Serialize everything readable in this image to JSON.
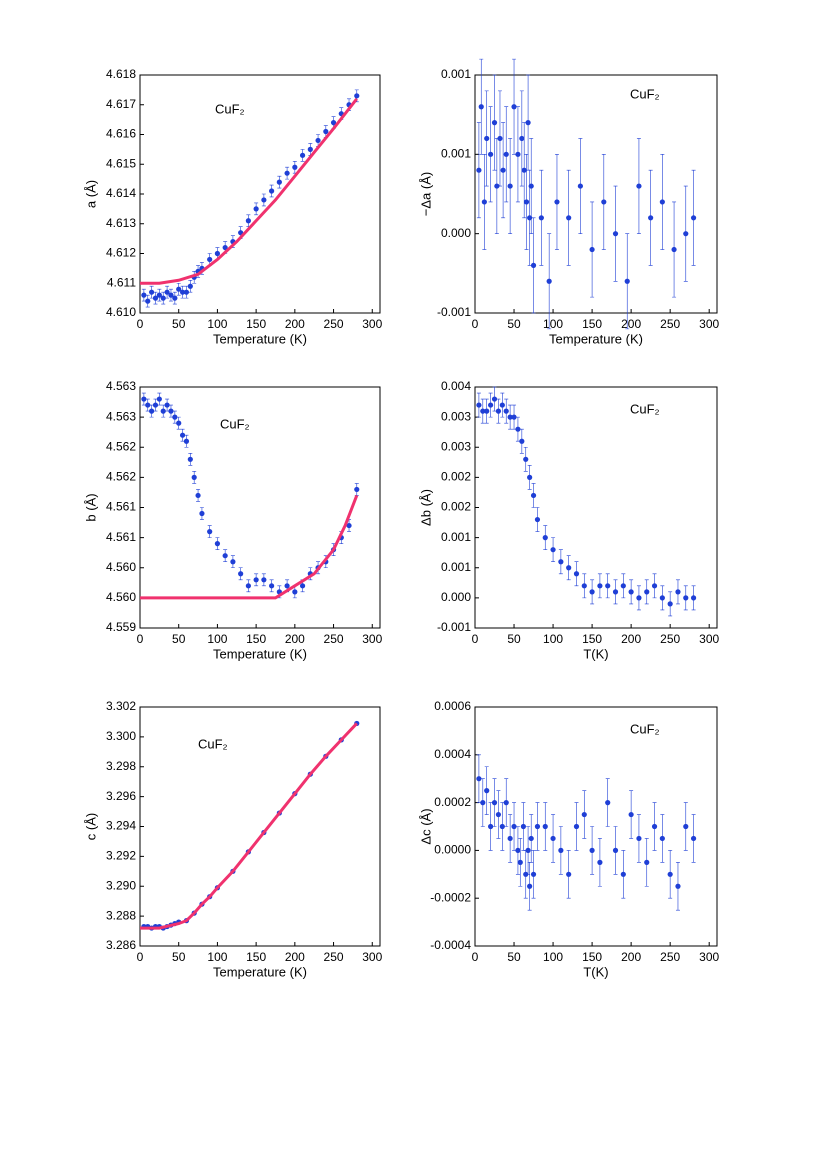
{
  "chart_data": [
    {
      "type": "scatter",
      "annotation": "CuF₂",
      "xlabel": "Temperature (K)",
      "ylabel": "a (Å)",
      "xlim": [
        0,
        310
      ],
      "xticks": [
        0,
        50,
        100,
        150,
        200,
        250,
        300
      ],
      "ylim": [
        4.61,
        4.618
      ],
      "yticks": [
        {
          "value": 4.61,
          "label": "4.610"
        },
        4.611,
        4.612,
        4.613,
        4.614,
        4.615,
        4.616,
        4.617,
        4.618
      ],
      "series": [
        {
          "mode": "markers",
          "color": "#1f3fd6",
          "x": [
            5,
            10,
            15,
            20,
            25,
            30,
            35,
            40,
            45,
            50,
            55,
            60,
            65,
            70,
            75,
            80,
            90,
            100,
            110,
            120,
            130,
            140,
            150,
            160,
            170,
            180,
            190,
            200,
            210,
            220,
            230,
            240,
            250,
            260,
            270,
            280
          ],
          "values": [
            4.6106,
            4.6104,
            4.6107,
            4.6105,
            4.6106,
            4.6105,
            4.6107,
            4.6106,
            4.6105,
            4.6108,
            4.6107,
            4.6107,
            4.6109,
            4.6112,
            4.6114,
            4.6115,
            4.6118,
            4.612,
            4.6122,
            4.6124,
            4.6127,
            4.6131,
            4.6135,
            4.6138,
            4.6141,
            4.6144,
            4.6147,
            4.6149,
            4.6153,
            4.6155,
            4.6158,
            4.6161,
            4.6164,
            4.6167,
            4.617,
            4.6173
          ],
          "errors": [
            0.0002,
            0.0002,
            0.0002,
            0.0002,
            0.0002,
            0.0002,
            0.0002,
            0.0002,
            0.0002,
            0.0002,
            0.0002,
            0.0002,
            0.0002,
            0.0002,
            0.0002,
            0.0002,
            0.0002,
            0.0002,
            0.0002,
            0.0002,
            0.0002,
            0.0002,
            0.0002,
            0.0002,
            0.0002,
            0.0002,
            0.0002,
            0.0002,
            0.0002,
            0.0002,
            0.0002,
            0.0002,
            0.0002,
            0.0002,
            0.0002,
            0.0002
          ]
        },
        {
          "mode": "line",
          "color": "#f0326e",
          "x": [
            0,
            25,
            50,
            75,
            100,
            125,
            150,
            175,
            200,
            225,
            250,
            280
          ],
          "values": [
            4.611,
            4.611,
            4.6111,
            4.6113,
            4.6118,
            4.6124,
            4.6131,
            4.6138,
            4.6146,
            4.6154,
            4.6162,
            4.6172
          ]
        }
      ]
    },
    {
      "type": "scatter",
      "annotation": "CuF₂",
      "xlabel": "Temperature (K)",
      "ylabel": "−Δa (Å)",
      "xlim": [
        0,
        310
      ],
      "xticks": [
        0,
        50,
        100,
        150,
        200,
        250,
        300
      ],
      "ylim": [
        -0.0005,
        0.001
      ],
      "yticks": [
        {
          "value": -0.0005,
          "label": "-0.001"
        },
        {
          "value": 0,
          "label": "0.000"
        },
        {
          "value": 0.0005,
          "label": "0.001"
        },
        0.001
      ],
      "series": [
        {
          "mode": "markers",
          "color": "#1f3fd6",
          "x": [
            5,
            8,
            12,
            15,
            20,
            25,
            28,
            32,
            36,
            40,
            45,
            50,
            55,
            60,
            63,
            66,
            68,
            70,
            72,
            75,
            85,
            95,
            105,
            120,
            135,
            150,
            165,
            180,
            195,
            210,
            225,
            240,
            255,
            270,
            280
          ],
          "values": [
            0.0004,
            0.0008,
            0.0002,
            0.0006,
            0.0005,
            0.0007,
            0.0003,
            0.0006,
            0.0004,
            0.0005,
            0.0003,
            0.0008,
            0.0005,
            0.0006,
            0.0004,
            0.0002,
            0.0007,
            0.0001,
            0.0003,
            -0.0002,
            0.0001,
            -0.0003,
            0.0002,
            0.0001,
            0.0003,
            -0.0001,
            0.0002,
            0,
            -0.0003,
            0.0003,
            0.0001,
            0.0002,
            -0.0001,
            0,
            0.0001
          ],
          "errors": [
            0.0003,
            0.0003,
            0.0003,
            0.0003,
            0.0003,
            0.0003,
            0.0003,
            0.0003,
            0.0003,
            0.0003,
            0.0003,
            0.0003,
            0.0003,
            0.0003,
            0.0003,
            0.0003,
            0.0003,
            0.0003,
            0.0003,
            0.0003,
            0.0003,
            0.0003,
            0.0003,
            0.0003,
            0.0003,
            0.0003,
            0.0003,
            0.0003,
            0.0003,
            0.0003,
            0.0003,
            0.0003,
            0.0003,
            0.0003,
            0.0003
          ]
        }
      ]
    },
    {
      "type": "scatter",
      "annotation": "CuF₂",
      "xlabel": "Temperature (K)",
      "ylabel": "b (Å)",
      "xlim": [
        0,
        310
      ],
      "xticks": [
        0,
        50,
        100,
        150,
        200,
        250,
        300
      ],
      "ylim": [
        4.559,
        4.563
      ],
      "yticks": [
        4.559,
        {
          "value": 4.5595,
          "label": "4.560"
        },
        {
          "value": 4.56,
          "label": "4.560"
        },
        {
          "value": 4.5605,
          "label": "4.561"
        },
        4.561,
        {
          "value": 4.5615,
          "label": "4.562"
        },
        4.562,
        {
          "value": 4.5625,
          "label": "4.563"
        },
        4.563
      ],
      "series": [
        {
          "mode": "markers",
          "color": "#1f3fd6",
          "x": [
            5,
            10,
            15,
            20,
            25,
            30,
            35,
            40,
            45,
            50,
            55,
            60,
            65,
            70,
            75,
            80,
            90,
            100,
            110,
            120,
            130,
            140,
            150,
            160,
            170,
            180,
            190,
            200,
            210,
            220,
            230,
            240,
            250,
            260,
            270,
            280
          ],
          "values": [
            4.5628,
            4.5627,
            4.5626,
            4.5627,
            4.5628,
            4.5626,
            4.5627,
            4.5626,
            4.5625,
            4.5624,
            4.5622,
            4.5621,
            4.5618,
            4.5615,
            4.5612,
            4.5609,
            4.5606,
            4.5604,
            4.5602,
            4.5601,
            4.5599,
            4.5597,
            4.5598,
            4.5598,
            4.5597,
            4.5596,
            4.5597,
            4.5596,
            4.5597,
            4.5599,
            4.56,
            4.5601,
            4.5603,
            4.5605,
            4.5607,
            4.5613
          ],
          "errors": [
            0.0001,
            0.0001,
            0.0001,
            0.0001,
            0.0001,
            0.0001,
            0.0001,
            0.0001,
            0.0001,
            0.0001,
            0.0001,
            0.0001,
            0.0001,
            0.0001,
            0.0001,
            0.0001,
            0.0001,
            0.0001,
            0.0001,
            0.0001,
            0.0001,
            0.0001,
            0.0001,
            0.0001,
            0.0001,
            0.0001,
            0.0001,
            0.0001,
            0.0001,
            0.0001,
            0.0001,
            0.0001,
            0.0001,
            0.0001,
            0.0001,
            0.0001
          ]
        },
        {
          "mode": "line",
          "color": "#f0326e",
          "x": [
            0,
            50,
            100,
            150,
            175,
            200,
            225,
            250,
            265,
            280
          ],
          "values": [
            4.5595,
            4.5595,
            4.5595,
            4.5595,
            4.5595,
            4.5597,
            4.5599,
            4.5603,
            4.5607,
            4.5612
          ]
        }
      ]
    },
    {
      "type": "scatter",
      "annotation": "CuF₂",
      "xlabel": "T(K)",
      "ylabel": "Δb (Å)",
      "xlim": [
        0,
        310
      ],
      "xticks": [
        0,
        50,
        100,
        150,
        200,
        250,
        300
      ],
      "ylim": [
        -0.0005,
        0.0035
      ],
      "yticks": [
        {
          "value": -0.0005,
          "label": "-0.001"
        },
        {
          "value": 0,
          "label": "0.000"
        },
        {
          "value": 0.0005,
          "label": "0.001"
        },
        0.001,
        {
          "value": 0.0015,
          "label": "0.002"
        },
        0.002,
        {
          "value": 0.0025,
          "label": "0.003"
        },
        0.003,
        {
          "value": 0.0035,
          "label": "0.004"
        }
      ],
      "series": [
        {
          "mode": "markers",
          "color": "#1f3fd6",
          "x": [
            5,
            10,
            15,
            20,
            25,
            30,
            35,
            40,
            45,
            50,
            55,
            60,
            65,
            70,
            75,
            80,
            90,
            100,
            110,
            120,
            130,
            140,
            150,
            160,
            170,
            180,
            190,
            200,
            210,
            220,
            230,
            240,
            250,
            260,
            270,
            280
          ],
          "values": [
            0.0032,
            0.0031,
            0.0031,
            0.0032,
            0.0033,
            0.0031,
            0.0032,
            0.0031,
            0.003,
            0.003,
            0.0028,
            0.0026,
            0.0023,
            0.002,
            0.0017,
            0.0013,
            0.001,
            0.0008,
            0.0006,
            0.0005,
            0.0004,
            0.0002,
            0.0001,
            0.0002,
            0.0002,
            0.0001,
            0.0002,
            0.0001,
            0,
            0.0001,
            0.0002,
            0,
            -0.0001,
            0.0001,
            0,
            0
          ],
          "errors": [
            0.0002,
            0.0002,
            0.0002,
            0.0002,
            0.0002,
            0.0002,
            0.0002,
            0.0002,
            0.0002,
            0.0002,
            0.0002,
            0.0002,
            0.0002,
            0.0002,
            0.0002,
            0.0002,
            0.0002,
            0.0002,
            0.0002,
            0.0002,
            0.0002,
            0.0002,
            0.0002,
            0.0002,
            0.0002,
            0.0002,
            0.0002,
            0.0002,
            0.0002,
            0.0002,
            0.0002,
            0.0002,
            0.0002,
            0.0002,
            0.0002,
            0.0002
          ]
        }
      ]
    },
    {
      "type": "scatter",
      "annotation": "CuF₂",
      "xlabel": "Temperature (K)",
      "ylabel": "c (Å)",
      "xlim": [
        0,
        310
      ],
      "xticks": [
        0,
        50,
        100,
        150,
        200,
        250,
        300
      ],
      "ylim": [
        3.286,
        3.302
      ],
      "yticks": [
        3.286,
        3.288,
        {
          "value": 3.29,
          "label": "3.290"
        },
        3.292,
        3.294,
        3.296,
        3.298,
        {
          "value": 3.3,
          "label": "3.300"
        },
        3.302
      ],
      "series": [
        {
          "mode": "markers",
          "color": "#1f3fd6",
          "x": [
            5,
            10,
            15,
            20,
            25,
            30,
            35,
            40,
            45,
            50,
            60,
            70,
            80,
            90,
            100,
            120,
            140,
            160,
            180,
            200,
            220,
            240,
            260,
            280
          ],
          "values": [
            3.2873,
            3.2873,
            3.2872,
            3.2873,
            3.2873,
            3.2872,
            3.2873,
            3.2874,
            3.2875,
            3.2876,
            3.2877,
            3.2882,
            3.2888,
            3.2893,
            3.2899,
            3.291,
            3.2923,
            3.2936,
            3.2949,
            3.2962,
            3.2975,
            3.2987,
            3.2998,
            3.3009
          ],
          "errors": [
            0.0001,
            0.0001,
            0.0001,
            0.0001,
            0.0001,
            0.0001,
            0.0001,
            0.0001,
            0.0001,
            0.0001,
            0.0001,
            0.0001,
            0.0001,
            0.0001,
            0.0001,
            0.0001,
            0.0001,
            0.0001,
            0.0001,
            0.0001,
            0.0001,
            0.0001,
            0.0001,
            0.0001
          ]
        },
        {
          "mode": "line",
          "color": "#f0326e",
          "x": [
            0,
            25,
            50,
            60,
            70,
            80,
            90,
            100,
            120,
            140,
            160,
            180,
            200,
            220,
            240,
            260,
            280
          ],
          "values": [
            3.2872,
            3.2872,
            3.2875,
            3.2877,
            3.2882,
            3.2888,
            3.2893,
            3.2899,
            3.291,
            3.2923,
            3.2936,
            3.2949,
            3.2962,
            3.2975,
            3.2987,
            3.2998,
            3.3009
          ]
        }
      ]
    },
    {
      "type": "scatter",
      "annotation": "CuF₂",
      "xlabel": "T(K)",
      "ylabel": "Δc (Å)",
      "xlim": [
        0,
        310
      ],
      "xticks": [
        0,
        50,
        100,
        150,
        200,
        250,
        300
      ],
      "ylim": [
        -0.0004,
        0.0006
      ],
      "yticks": [
        -0.0004,
        -0.0002,
        {
          "value": 0,
          "label": "0.0000"
        },
        0.0002,
        0.0004,
        0.0006
      ],
      "series": [
        {
          "mode": "markers",
          "color": "#1f3fd6",
          "x": [
            5,
            10,
            15,
            20,
            25,
            30,
            35,
            40,
            45,
            50,
            55,
            58,
            62,
            65,
            68,
            70,
            72,
            75,
            80,
            90,
            100,
            110,
            120,
            130,
            140,
            150,
            160,
            170,
            180,
            190,
            200,
            210,
            220,
            230,
            240,
            250,
            260,
            270,
            280
          ],
          "values": [
            0.0003,
            0.0002,
            0.00025,
            0.0001,
            0.0002,
            0.00015,
            0.0001,
            0.0002,
            5e-05,
            0.0001,
            0,
            -5e-05,
            0.0001,
            -0.0001,
            0,
            -0.00015,
            5e-05,
            -0.0001,
            0.0001,
            0.0001,
            5e-05,
            0,
            -0.0001,
            0.0001,
            0.00015,
            0,
            -5e-05,
            0.0002,
            0,
            -0.0001,
            0.00015,
            5e-05,
            -5e-05,
            0.0001,
            5e-05,
            -0.0001,
            -0.00015,
            0.0001,
            5e-05
          ],
          "errors": [
            0.0001,
            0.0001,
            0.0001,
            0.0001,
            0.0001,
            0.0001,
            0.0001,
            0.0001,
            0.0001,
            0.0001,
            0.0001,
            0.0001,
            0.0001,
            0.0001,
            0.0001,
            0.0001,
            0.0001,
            0.0001,
            0.0001,
            0.0001,
            0.0001,
            0.0001,
            0.0001,
            0.0001,
            0.0001,
            0.0001,
            0.0001,
            0.0001,
            0.0001,
            0.0001,
            0.0001,
            0.0001,
            0.0001,
            0.0001,
            0.0001,
            0.0001,
            0.0001,
            0.0001,
            0.0001
          ]
        }
      ]
    }
  ]
}
